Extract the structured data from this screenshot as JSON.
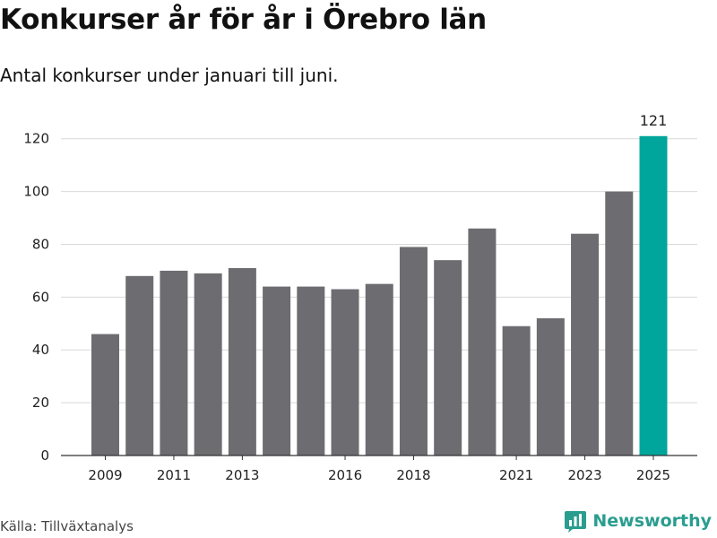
{
  "header": {
    "title": "Konkurser år för år i Örebro län",
    "subtitle": "Antal konkurser under januari till juni."
  },
  "footer": {
    "source": "Källa: Tillväxtanalys",
    "brand": "Newsworthy",
    "brand_icon": "bar-chart-logo-icon"
  },
  "colors": {
    "bar": "#6d6c71",
    "highlight": "#00a59b",
    "grid": "#d9d9d9",
    "brand": "#2a9d8f"
  },
  "chart_data": {
    "type": "bar",
    "title": "Konkurser år för år i Örebro län",
    "subtitle": "Antal konkurser under januari till juni.",
    "xlabel": "",
    "ylabel": "",
    "categories": [
      "2009",
      "2010",
      "2011",
      "2012",
      "2013",
      "2014",
      "2015",
      "2016",
      "2017",
      "2018",
      "2019",
      "2020",
      "2021",
      "2022",
      "2023",
      "2024",
      "2025"
    ],
    "values": [
      46,
      68,
      70,
      69,
      71,
      64,
      64,
      63,
      65,
      79,
      74,
      86,
      49,
      52,
      84,
      100,
      121
    ],
    "x_tick_labels": [
      "2009",
      "2011",
      "2013",
      "2016",
      "2018",
      "2021",
      "2023",
      "2025"
    ],
    "y_ticks": [
      0,
      20,
      40,
      60,
      80,
      100,
      120
    ],
    "ylim": [
      0,
      125
    ],
    "highlight_category": "2025",
    "highlight_label": "121",
    "grid": true,
    "legend": "none"
  }
}
